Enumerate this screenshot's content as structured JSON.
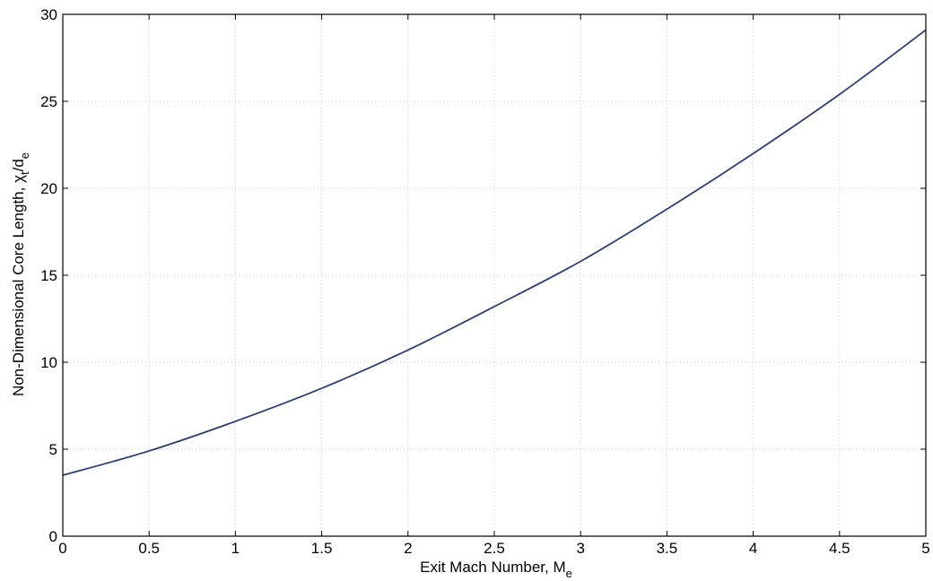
{
  "chart_data": {
    "type": "line",
    "xlabel": "Exit Mach Number, M",
    "xlabel_subscript": "e",
    "ylabel": "Non-Dimensional Core Length, χ",
    "ylabel_subscript": "t",
    "ylabel_suffix": "/d",
    "ylabel_suffix_subscript": "e",
    "xlim": [
      0,
      5
    ],
    "ylim": [
      0,
      30
    ],
    "xticks": [
      0,
      0.5,
      1,
      1.5,
      2,
      2.5,
      3,
      3.5,
      4,
      4.5,
      5
    ],
    "xtick_labels": [
      "0",
      "0.5",
      "1",
      "1.5",
      "2",
      "2.5",
      "3",
      "3.5",
      "4",
      "4.5",
      "5"
    ],
    "yticks": [
      0,
      5,
      10,
      15,
      20,
      25,
      30
    ],
    "ytick_labels": [
      "0",
      "5",
      "10",
      "15",
      "20",
      "25",
      "30"
    ],
    "grid": true,
    "series": [
      {
        "color": "#2b3f73",
        "x": [
          0,
          0.5,
          1,
          1.5,
          2,
          2.5,
          3,
          3.5,
          4,
          4.5,
          5
        ],
        "y": [
          3.5,
          4.9,
          6.6,
          8.5,
          10.7,
          13.2,
          15.8,
          18.8,
          22.0,
          25.4,
          29.1
        ]
      }
    ]
  }
}
